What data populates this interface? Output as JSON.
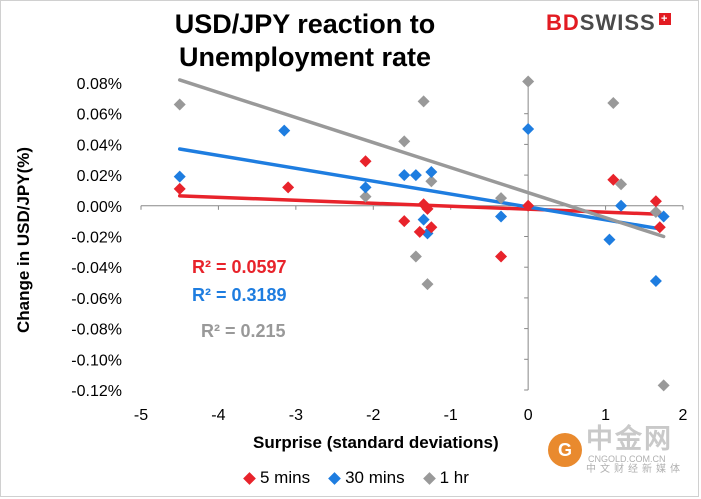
{
  "chart_data": {
    "type": "scatter",
    "title": "USD/JPY reaction to Unemployment rate",
    "xlabel": "Surprise (standard deviations)",
    "ylabel": "Change in USD/JPY(%)",
    "xlim": [
      -5,
      2
    ],
    "ylim": [
      -0.12,
      0.08
    ],
    "xticks": [
      -5,
      -4,
      -3,
      -2,
      -1,
      0,
      1,
      2
    ],
    "xtick_labels": [
      "-5",
      "-4",
      "-3",
      "-2",
      "-1",
      "0",
      "1",
      "2"
    ],
    "yticks": [
      0.08,
      0.06,
      0.04,
      0.02,
      0.0,
      -0.02,
      -0.04,
      -0.06,
      -0.08,
      -0.1,
      -0.12
    ],
    "ytick_labels": [
      "0.08%",
      "0.06%",
      "0.04%",
      "0.02%",
      "0.00%",
      "-0.02%",
      "-0.04%",
      "-0.06%",
      "-0.08%",
      "-0.10%",
      "-0.12%"
    ],
    "legend_position": "bottom",
    "series": [
      {
        "name": "5 mins",
        "color": "#e8232b",
        "points": [
          [
            -4.5,
            0.011
          ],
          [
            -3.1,
            0.012
          ],
          [
            -2.1,
            0.029
          ],
          [
            -1.6,
            -0.01
          ],
          [
            -1.4,
            -0.017
          ],
          [
            -1.35,
            0.001
          ],
          [
            -1.3,
            -0.002
          ],
          [
            -1.25,
            -0.014
          ],
          [
            -0.35,
            -0.033
          ],
          [
            0.0,
            0.0
          ],
          [
            1.1,
            0.017
          ],
          [
            1.65,
            0.003
          ],
          [
            1.7,
            -0.014
          ]
        ],
        "trendline": [
          [
            -4.5,
            0.0065
          ],
          [
            1.7,
            -0.0055
          ]
        ],
        "r2_label": "R² = 0.0597"
      },
      {
        "name": "30 mins",
        "color": "#1e7de0",
        "points": [
          [
            -4.5,
            0.019
          ],
          [
            -3.15,
            0.049
          ],
          [
            -2.1,
            0.012
          ],
          [
            -1.6,
            0.02
          ],
          [
            -1.45,
            0.02
          ],
          [
            -1.35,
            -0.009
          ],
          [
            -1.3,
            -0.018
          ],
          [
            -1.25,
            0.022
          ],
          [
            -0.35,
            -0.007
          ],
          [
            0.0,
            0.05
          ],
          [
            1.05,
            -0.022
          ],
          [
            1.2,
            0.0
          ],
          [
            1.65,
            -0.049
          ],
          [
            1.75,
            -0.007
          ]
        ],
        "trendline": [
          [
            -4.5,
            0.037
          ],
          [
            1.7,
            -0.015
          ]
        ],
        "r2_label": "R² = 0.3189"
      },
      {
        "name": "1 hr",
        "color": "#999999",
        "points": [
          [
            -4.5,
            0.066
          ],
          [
            -2.1,
            0.006
          ],
          [
            -1.6,
            0.042
          ],
          [
            -1.45,
            -0.033
          ],
          [
            -1.35,
            0.068
          ],
          [
            -1.3,
            -0.051
          ],
          [
            -1.25,
            0.016
          ],
          [
            -0.35,
            0.005
          ],
          [
            0.0,
            0.081
          ],
          [
            1.1,
            0.067
          ],
          [
            1.2,
            0.014
          ],
          [
            1.65,
            -0.004
          ],
          [
            1.75,
            -0.117
          ]
        ],
        "trendline": [
          [
            -4.5,
            0.082
          ],
          [
            1.75,
            -0.02
          ]
        ],
        "r2_label": "R² = 0.215"
      }
    ]
  },
  "logo": {
    "part1": "BD",
    "part2": "SWISS",
    "plus": "+"
  },
  "watermark": {
    "cn": "中金网",
    "domain": "CNGOLD.COM.CN",
    "sub": "中文财经新媒体"
  }
}
